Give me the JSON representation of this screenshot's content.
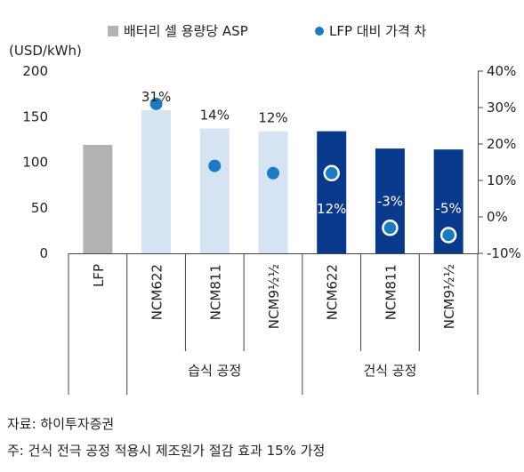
{
  "chart_data": {
    "type": "bar",
    "title": "",
    "legend": {
      "placement": "top",
      "bar_label": "배터리 셀 용량당 ASP",
      "dot_label": "LFP 대비 가격 차"
    },
    "y_left": {
      "label": "(USD/kWh)",
      "ylim": [
        0,
        200
      ],
      "ticks": [
        "200",
        "150",
        "100",
        "50",
        "0"
      ]
    },
    "y_right": {
      "label": "",
      "ylim": [
        -10,
        40
      ],
      "ticks": [
        "40%",
        "30%",
        "20%",
        "10%",
        "0%",
        "-10%"
      ]
    },
    "categories": [
      "LFP",
      "NCM622",
      "NCM811",
      "NCM9½½",
      "NCM622",
      "NCM811",
      "NCM9½½"
    ],
    "groups": [
      {
        "label": "습식 공정",
        "start": 1,
        "end": 3
      },
      {
        "label": "건식 공정",
        "start": 4,
        "end": 6
      }
    ],
    "series": [
      {
        "name": "배터리 셀 용량당 ASP",
        "kind": "bar",
        "axis": "left",
        "values": [
          119,
          157,
          137,
          134,
          134,
          115,
          114
        ]
      },
      {
        "name": "LFP 대비 가격 차",
        "kind": "dot",
        "axis": "right",
        "values": [
          null,
          31,
          14,
          12,
          12,
          -3,
          -5
        ],
        "labels": [
          "",
          "31%",
          "14%",
          "12%",
          "12%",
          "-3%",
          "-5%"
        ]
      }
    ],
    "colors": {
      "lfp": "#b3b3b3",
      "wet": "#d6e3f3",
      "dry": "#08398a",
      "dot": "#1b7bc0"
    }
  },
  "notes": {
    "source": "자료: 하이투자증권",
    "footnote": "주: 건식 전극 공정 적용시 제조원가 절감 효과 15% 가정"
  }
}
